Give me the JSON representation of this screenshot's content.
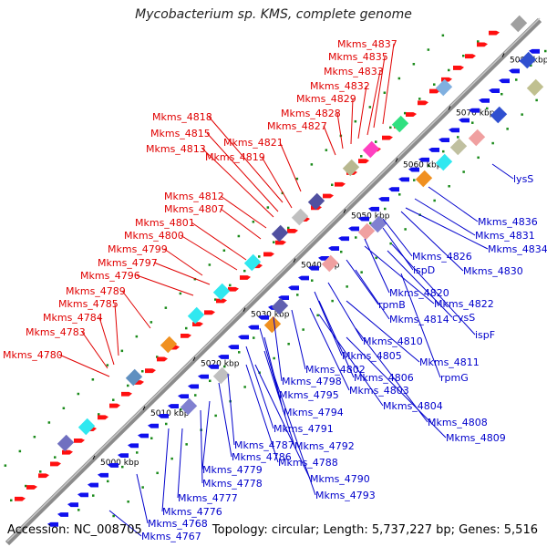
{
  "title": "Mycobacterium sp. KMS, complete genome",
  "footer": {
    "accession": "Accession: NC_008705",
    "summary": "Topology: circular; Length: 5,737,227 bp; Genes: 5,516"
  },
  "colors": {
    "forward_gene": "#ff0000",
    "reverse_gene": "#0000ee",
    "backbone": "#808080",
    "label_forward": "#e00000",
    "label_reverse": "#0000cc",
    "dots": "#1a8a1a"
  },
  "scale_ticks": [
    "5000 kbp",
    "5010 kbp",
    "5020 kbp",
    "5030 kbp",
    "5040 kbp",
    "5050 kbp",
    "5060 kbp",
    "5070 kbp",
    "5080 kbp"
  ],
  "forward_labels": [
    "Mkms_4837",
    "Mkms_4835",
    "Mkms_4833",
    "Mkms_4832",
    "Mkms_4829",
    "Mkms_4828",
    "Mkms_4827",
    "Mkms_4818",
    "Mkms_4821",
    "Mkms_4815",
    "Mkms_4813",
    "Mkms_4819",
    "Mkms_4812",
    "Mkms_4807",
    "Mkms_4801",
    "Mkms_4800",
    "Mkms_4799",
    "Mkms_4797",
    "Mkms_4796",
    "Mkms_4789",
    "Mkms_4785",
    "Mkms_4784",
    "Mkms_4783",
    "Mkms_4780"
  ],
  "reverse_labels": [
    "lysS",
    "Mkms_4836",
    "Mkms_4831",
    "Mkms_4834",
    "Mkms_4826",
    "ispD",
    "Mkms_4830",
    "Mkms_4820",
    "Mkms_4822",
    "rpmB",
    "Mkms_4814",
    "cysS",
    "ispF",
    "Mkms_4810",
    "Mkms_4805",
    "Mkms_4811",
    "Mkms_4802",
    "rpmG",
    "Mkms_4798",
    "Mkms_4806",
    "Mkms_4803",
    "Mkms_4795",
    "Mkms_4804",
    "Mkms_4794",
    "Mkms_4808",
    "Mkms_4791",
    "Mkms_4809",
    "Mkms_4787",
    "Mkms_4792",
    "Mkms_4786",
    "Mkms_4788",
    "Mkms_4779",
    "Mkms_4778",
    "Mkms_4790",
    "Mkms_4777",
    "Mkms_4793",
    "Mkms_4776",
    "Mkms_4768",
    "Mkms_4767"
  ]
}
